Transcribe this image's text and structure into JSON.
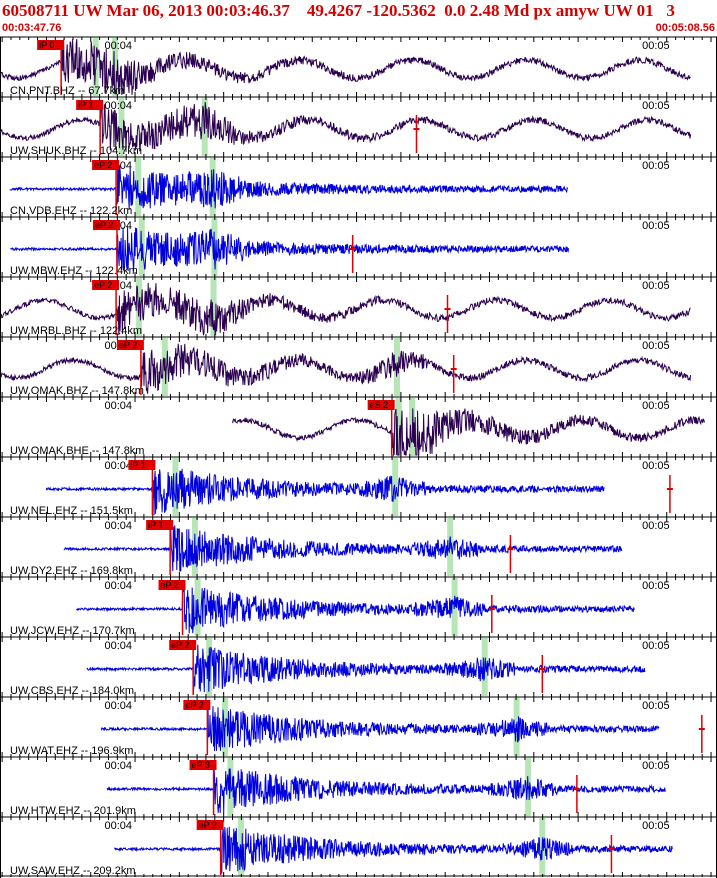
{
  "header": {
    "title": "60508711 UW Mar 06, 2013 00:03:46.37    49.4267 -120.5362  0.0 2.48 Md px amyw UW 01   3",
    "start_time": "00:03:47.76",
    "end_time": "00:05:08.56"
  },
  "colors": {
    "header_text": "#d40000",
    "bh_trace": "#2b0050",
    "eh_trace": "#0000dd",
    "pick_box": "#e00000",
    "coda_band": "#b6e6b6",
    "grid": "#000000"
  },
  "chart_data": {
    "type": "line",
    "title": "60508711 UW Mar 06, 2013 00:03:46.37    49.4267 -120.5362  0.0 2.48 Md px amyw UW 01   3",
    "x_unit": "seconds",
    "x_range": [
      "00:03:47.76",
      "00:05:08.56"
    ],
    "tick_labels": [
      "00:04",
      "00:05"
    ],
    "grid": true,
    "traces": [
      {
        "label": "CN.PNT.BHZ -- 67.7km",
        "channel": "BHZ",
        "pick": "iP 0",
        "p_time": 6.9,
        "green": [
          10.8,
          13.0
        ],
        "red_mark": null
      },
      {
        "label": "UW.SHUK.BHZ -- 104.7km",
        "channel": "BHZ",
        "pick": "iP 1",
        "p_time": 11.3,
        "green": [
          13.7,
          23.1
        ],
        "red_mark": 47.0
      },
      {
        "label": "CN.VDB.EHZ -- 122.2km",
        "channel": "EHZ",
        "pick": "eP 2",
        "p_time": 13.1,
        "green": [
          15.6,
          24.0
        ],
        "red_mark": null
      },
      {
        "label": "UW.MBW.EHZ -- 122.4km",
        "channel": "EHZ",
        "pick": "eP 2",
        "p_time": 13.2,
        "green": [
          16.0,
          24.2
        ],
        "red_mark": 39.8
      },
      {
        "label": "UW.MRBL.BHZ -- 122.4km",
        "channel": "BHZ",
        "pick": "eP 2",
        "p_time": 13.1,
        "green": [
          15.7,
          24.1
        ],
        "red_mark": 50.5
      },
      {
        "label": "UW.OMAK.BHZ -- 147.8km",
        "channel": "BHZ",
        "pick": "eP 2",
        "p_time": 15.9,
        "green": [
          18.6,
          44.8
        ],
        "red_mark": 51.2
      },
      {
        "label": "UW.OMAK.BHE -- 147.8km",
        "channel": "BHE",
        "pick": "eS 2",
        "p_time": 44.2,
        "green": [
          45.0,
          46.5
        ],
        "red_mark": null
      },
      {
        "label": "UW.NEL.EHZ -- 151.5km",
        "channel": "EHZ",
        "pick": "iP 1",
        "p_time": 17.2,
        "green": [
          19.8,
          44.6
        ],
        "red_mark": 75.6
      },
      {
        "label": "UW.DY2.EHZ -- 169.8km",
        "channel": "EHZ",
        "pick": "iP 1",
        "p_time": 19.2,
        "green": [
          22.0,
          50.8
        ],
        "red_mark": 57.6
      },
      {
        "label": "UW.JCW.EHZ -- 170.7km",
        "channel": "EHZ",
        "pick": "eP 2",
        "p_time": 20.6,
        "green": [
          22.3,
          51.3
        ],
        "red_mark": 55.5
      },
      {
        "label": "UW.CBS.EHZ -- 184.0km",
        "channel": "EHZ",
        "pick": "eP 2",
        "p_time": 21.8,
        "green": [
          23.6,
          54.7
        ],
        "red_mark": 61.2
      },
      {
        "label": "UW.WAT.EHZ -- 196.9km",
        "channel": "EHZ",
        "pick": "eP 2",
        "p_time": 23.4,
        "green": [
          25.4,
          58.3
        ],
        "red_mark": 79.2
      },
      {
        "label": "UW.HTW.EHZ -- 201.9km",
        "channel": "EHZ",
        "pick": "eP 3",
        "p_time": 24.1,
        "green": [
          26.0,
          59.6
        ],
        "red_mark": 65.1
      },
      {
        "label": "UW.SAW.EHZ -- 209.2km",
        "channel": "EHZ",
        "pick": "eP 2",
        "p_time": 24.9,
        "green": [
          27.2,
          61.2
        ],
        "red_mark": 69.0
      }
    ]
  }
}
